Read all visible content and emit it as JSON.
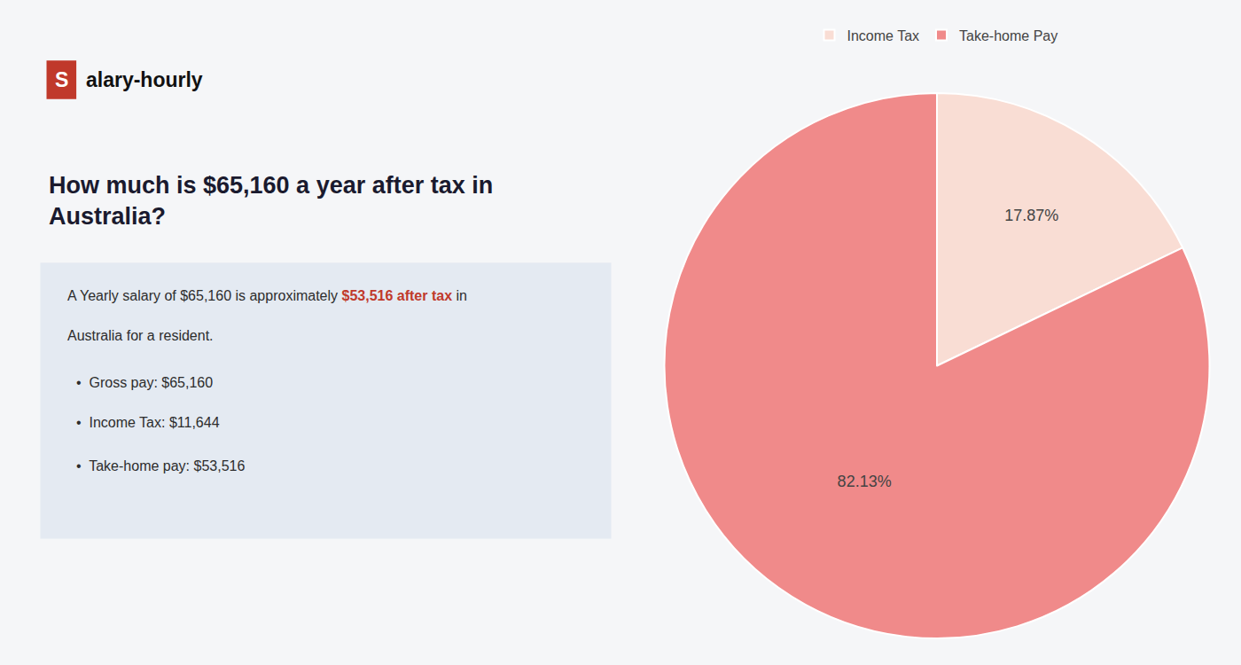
{
  "chart_data": {
    "type": "pie",
    "title": "How much is $65,160 a year after tax in Australia?",
    "categories": [
      "Income Tax",
      "Take-home Pay"
    ],
    "values": [
      17.87,
      82.13
    ],
    "value_labels": [
      "17.87%",
      "82.13%"
    ],
    "colors": [
      "#f9ddd4",
      "#f08a8a"
    ],
    "data_labels": true,
    "legend": "top",
    "annotations": [
      {
        "text": "S",
        "color": "#c0392b"
      },
      {
        "text": "alary-hourly"
      },
      {
        "text": "A Yearly salary of $65,160 is approximately "
      },
      {
        "text": "$53,516 after tax",
        "color": "#c0392b"
      },
      {
        "text": " in"
      },
      {
        "text": "Australia for a resident."
      },
      {
        "text": "•  Gross pay: $65,160"
      },
      {
        "text": "•  Income Tax: $11,644"
      },
      {
        "text": "•  Take-home pay: $53,516"
      }
    ]
  }
}
